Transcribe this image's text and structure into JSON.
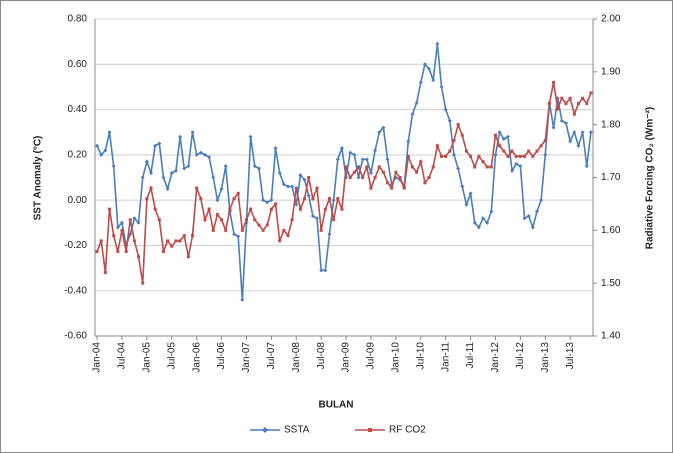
{
  "chart_data": {
    "type": "line",
    "y_label": "SST Anomaly (°C)",
    "y2_label": "Radiative Forcing CO₂ (Wm⁻²)",
    "x_label": "BULAN",
    "categories": [
      "Jan-04",
      null,
      null,
      null,
      null,
      null,
      "Jul-04",
      null,
      null,
      null,
      null,
      null,
      "Jan-05",
      null,
      null,
      null,
      null,
      null,
      "Jul-05",
      null,
      null,
      null,
      null,
      null,
      "Jan-06",
      null,
      null,
      null,
      null,
      null,
      "Jul-06",
      null,
      null,
      null,
      null,
      null,
      "Jan-07",
      null,
      null,
      null,
      null,
      null,
      "Jul-07",
      null,
      null,
      null,
      null,
      null,
      "Jan-08",
      null,
      null,
      null,
      null,
      null,
      "Jul-08",
      null,
      null,
      null,
      null,
      null,
      "Jan-09",
      null,
      null,
      null,
      null,
      null,
      "Jul-09",
      null,
      null,
      null,
      null,
      null,
      "Jan-10",
      null,
      null,
      null,
      null,
      null,
      "Jul-10",
      null,
      null,
      null,
      null,
      null,
      "Jan-11",
      null,
      null,
      null,
      null,
      null,
      "Jul-11",
      null,
      null,
      null,
      null,
      null,
      "Jan-12",
      null,
      null,
      null,
      null,
      null,
      "Jul-12",
      null,
      null,
      null,
      null,
      null,
      "Jan-13",
      null,
      null,
      null,
      null,
      null,
      "Jul-13",
      null,
      null,
      null,
      null,
      null
    ],
    "series": [
      {
        "name": "SSTA",
        "color": "#4a7ebb",
        "values": [
          0.24,
          0.2,
          0.22,
          0.3,
          0.15,
          -0.12,
          -0.1,
          -0.2,
          -0.15,
          -0.08,
          -0.1,
          0.1,
          0.17,
          0.12,
          0.24,
          0.25,
          0.1,
          0.05,
          0.12,
          0.13,
          0.28,
          0.14,
          0.15,
          0.3,
          0.2,
          0.21,
          0.2,
          0.19,
          0.1,
          0.0,
          0.05,
          0.15,
          -0.05,
          -0.15,
          -0.16,
          -0.44,
          -0.1,
          0.28,
          0.15,
          0.14,
          0.0,
          -0.01,
          0.0,
          0.23,
          0.12,
          0.07,
          0.06,
          0.06,
          -0.02,
          0.11,
          0.09,
          0.02,
          -0.07,
          -0.08,
          -0.31,
          -0.31,
          -0.15,
          0.0,
          0.18,
          0.23,
          0.1,
          0.21,
          0.2,
          0.1,
          0.18,
          0.18,
          0.12,
          0.22,
          0.3,
          0.32,
          0.18,
          0.07,
          0.1,
          0.09,
          0.06,
          0.26,
          0.38,
          0.43,
          0.52,
          0.6,
          0.58,
          0.53,
          0.69,
          0.5,
          0.4,
          0.35,
          0.2,
          0.14,
          0.06,
          -0.02,
          0.03,
          -0.1,
          -0.12,
          -0.08,
          -0.1,
          -0.05,
          0.2,
          0.3,
          0.27,
          0.28,
          0.13,
          0.16,
          0.15,
          -0.08,
          -0.07,
          -0.12,
          -0.05,
          0.0,
          0.2,
          0.43,
          0.32,
          0.45,
          0.35,
          0.34,
          0.26,
          0.3,
          0.24,
          0.3,
          0.15,
          0.3
        ]
      },
      {
        "name": "RF CO2",
        "color": "#be4b48",
        "axis": "y2",
        "values": [
          1.56,
          1.58,
          1.52,
          1.64,
          1.59,
          1.56,
          1.6,
          1.56,
          1.62,
          1.58,
          1.55,
          1.5,
          1.66,
          1.68,
          1.64,
          1.62,
          1.56,
          1.58,
          1.57,
          1.58,
          1.58,
          1.59,
          1.55,
          1.59,
          1.68,
          1.66,
          1.62,
          1.64,
          1.6,
          1.63,
          1.62,
          1.6,
          1.64,
          1.66,
          1.67,
          1.6,
          1.62,
          1.64,
          1.62,
          1.61,
          1.6,
          1.61,
          1.64,
          1.65,
          1.58,
          1.6,
          1.59,
          1.62,
          1.68,
          1.64,
          1.66,
          1.7,
          1.66,
          1.68,
          1.6,
          1.64,
          1.66,
          1.62,
          1.66,
          1.64,
          1.72,
          1.7,
          1.71,
          1.72,
          1.7,
          1.72,
          1.68,
          1.7,
          1.72,
          1.71,
          1.69,
          1.68,
          1.71,
          1.7,
          1.68,
          1.74,
          1.72,
          1.71,
          1.73,
          1.69,
          1.7,
          1.72,
          1.76,
          1.74,
          1.74,
          1.75,
          1.77,
          1.8,
          1.78,
          1.75,
          1.74,
          1.72,
          1.74,
          1.73,
          1.72,
          1.72,
          1.78,
          1.76,
          1.75,
          1.74,
          1.75,
          1.74,
          1.74,
          1.74,
          1.75,
          1.74,
          1.75,
          1.76,
          1.77,
          1.84,
          1.88,
          1.83,
          1.85,
          1.84,
          1.85,
          1.82,
          1.84,
          1.85,
          1.84,
          1.86
        ]
      }
    ],
    "ylim": [
      -0.6,
      0.8
    ],
    "yticks": [
      {
        "value": -0.6,
        "label": "-0.60"
      },
      {
        "value": -0.4,
        "label": "-0.40"
      },
      {
        "value": -0.2,
        "label": "-0.20"
      },
      {
        "value": 0,
        "label": "0.00"
      },
      {
        "value": 0.2,
        "label": "0.20"
      },
      {
        "value": 0.4,
        "label": "0.40"
      },
      {
        "value": 0.6,
        "label": "0.60"
      },
      {
        "value": 0.8,
        "label": "0.80"
      }
    ],
    "y2lim": [
      1.4,
      2.0
    ],
    "y2ticks": [
      {
        "value": 1.4,
        "label": "1.40"
      },
      {
        "value": 1.5,
        "label": "1.50"
      },
      {
        "value": 1.6,
        "label": "1.60"
      },
      {
        "value": 1.7,
        "label": "1.70"
      },
      {
        "value": 1.8,
        "label": "1.80"
      },
      {
        "value": 1.9,
        "label": "1.90"
      },
      {
        "value": 2.0,
        "label": "2.00"
      }
    ],
    "grid": true,
    "legend": "bottom"
  }
}
